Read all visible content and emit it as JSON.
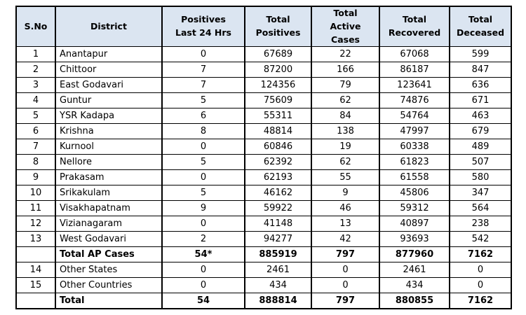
{
  "colors": {
    "header_bg": "#dbe5f1",
    "border": "#000000",
    "text": "#000000"
  },
  "chart_data": {
    "type": "table",
    "columns": [
      "S.No",
      "District",
      "Positives\nLast 24 Hrs",
      "Total\nPositives",
      "Total\nActive Cases",
      "Total\nRecovered",
      "Total\nDeceased"
    ],
    "rows": [
      {
        "bold": false,
        "cells": [
          "1",
          "Anantapur",
          "0",
          "67689",
          "22",
          "67068",
          "599"
        ]
      },
      {
        "bold": false,
        "cells": [
          "2",
          "Chittoor",
          "7",
          "87200",
          "166",
          "86187",
          "847"
        ]
      },
      {
        "bold": false,
        "cells": [
          "3",
          "East Godavari",
          "7",
          "124356",
          "79",
          "123641",
          "636"
        ]
      },
      {
        "bold": false,
        "cells": [
          "4",
          "Guntur",
          "5",
          "75609",
          "62",
          "74876",
          "671"
        ]
      },
      {
        "bold": false,
        "cells": [
          "5",
          "YSR Kadapa",
          "6",
          "55311",
          "84",
          "54764",
          "463"
        ]
      },
      {
        "bold": false,
        "cells": [
          "6",
          "Krishna",
          "8",
          "48814",
          "138",
          "47997",
          "679"
        ]
      },
      {
        "bold": false,
        "cells": [
          "7",
          "Kurnool",
          "0",
          "60846",
          "19",
          "60338",
          "489"
        ]
      },
      {
        "bold": false,
        "cells": [
          "8",
          "Nellore",
          "5",
          "62392",
          "62",
          "61823",
          "507"
        ]
      },
      {
        "bold": false,
        "cells": [
          "9",
          "Prakasam",
          "0",
          "62193",
          "55",
          "61558",
          "580"
        ]
      },
      {
        "bold": false,
        "cells": [
          "10",
          "Srikakulam",
          "5",
          "46162",
          "9",
          "45806",
          "347"
        ]
      },
      {
        "bold": false,
        "cells": [
          "11",
          "Visakhapatnam",
          "9",
          "59922",
          "46",
          "59312",
          "564"
        ]
      },
      {
        "bold": false,
        "cells": [
          "12",
          "Vizianagaram",
          "0",
          "41148",
          "13",
          "40897",
          "238"
        ]
      },
      {
        "bold": false,
        "cells": [
          "13",
          "West Godavari",
          "2",
          "94277",
          "42",
          "93693",
          "542"
        ]
      },
      {
        "bold": true,
        "cells": [
          "",
          "Total AP Cases",
          "54*",
          "885919",
          "797",
          "877960",
          "7162"
        ]
      },
      {
        "bold": false,
        "cells": [
          "14",
          "Other States",
          "0",
          "2461",
          "0",
          "2461",
          "0"
        ]
      },
      {
        "bold": false,
        "cells": [
          "15",
          "Other Countries",
          "0",
          "434",
          "0",
          "434",
          "0"
        ]
      },
      {
        "bold": true,
        "cells": [
          "",
          "Total",
          "54",
          "888814",
          "797",
          "880855",
          "7162"
        ]
      }
    ]
  }
}
